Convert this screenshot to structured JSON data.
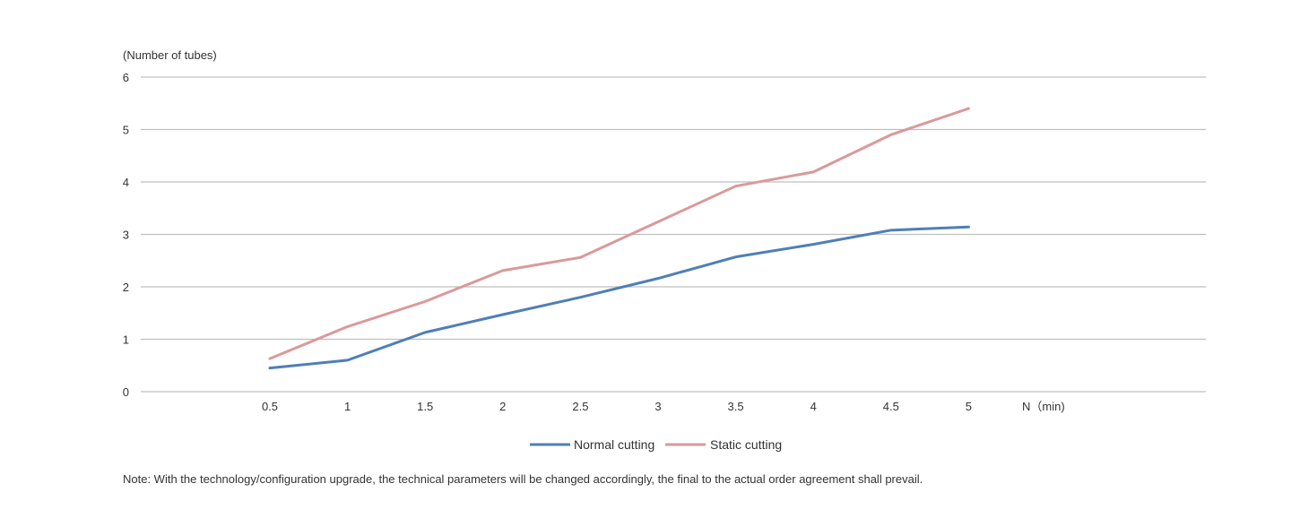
{
  "chart_data": {
    "type": "line",
    "ylabel": "(Number of tubes)",
    "xlabel": "N（min)",
    "x": [
      "0.5",
      "1",
      "1.5",
      "2",
      "2.5",
      "3",
      "3.5",
      "4",
      "4.5",
      "5"
    ],
    "ylim": [
      0,
      6
    ],
    "yticks": [
      "0",
      "1",
      "2",
      "3",
      "4",
      "5",
      "6"
    ],
    "grid": true,
    "legend_position": "bottom",
    "series": [
      {
        "name": "Normal cutting",
        "color": "#4e7fb8",
        "values": [
          0.45,
          0.6,
          1.13,
          1.47,
          1.8,
          2.16,
          2.57,
          2.81,
          3.08,
          3.14
        ]
      },
      {
        "name": "Static cutting",
        "color": "#d99a9a",
        "values": [
          0.63,
          1.24,
          1.72,
          2.31,
          2.56,
          3.24,
          3.92,
          4.19,
          4.9,
          5.4
        ]
      }
    ]
  },
  "note": "Note: With the technology/configuration upgrade, the technical parameters will be changed accordingly, the final to the actual order agreement shall prevail."
}
